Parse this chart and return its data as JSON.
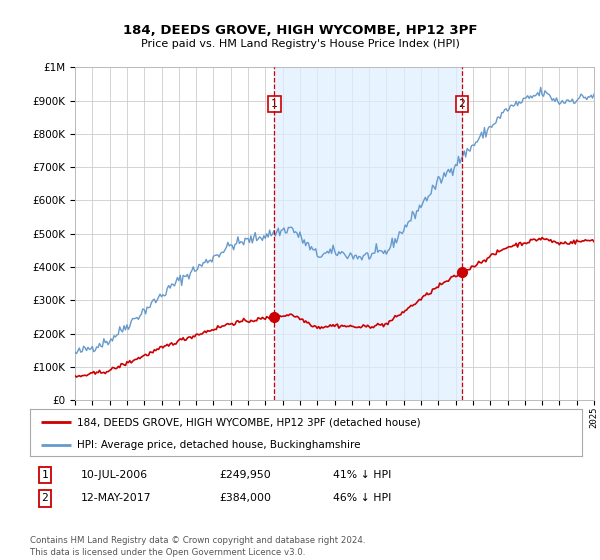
{
  "title": "184, DEEDS GROVE, HIGH WYCOMBE, HP12 3PF",
  "subtitle": "Price paid vs. HM Land Registry's House Price Index (HPI)",
  "legend_line1": "184, DEEDS GROVE, HIGH WYCOMBE, HP12 3PF (detached house)",
  "legend_line2": "HPI: Average price, detached house, Buckinghamshire",
  "transaction1_label": "1",
  "transaction1_date": "10-JUL-2006",
  "transaction1_price": "£249,950",
  "transaction1_hpi": "41% ↓ HPI",
  "transaction1_year": 2006.53,
  "transaction1_value": 249950,
  "transaction2_label": "2",
  "transaction2_date": "12-MAY-2017",
  "transaction2_price": "£384,000",
  "transaction2_hpi": "46% ↓ HPI",
  "transaction2_year": 2017.36,
  "transaction2_value": 384000,
  "footer": "Contains HM Land Registry data © Crown copyright and database right 2024.\nThis data is licensed under the Open Government Licence v3.0.",
  "ylim": [
    0,
    1000000
  ],
  "xlim_start": 1995,
  "xlim_end": 2025,
  "hpi_color": "#6699cc",
  "price_color": "#cc0000",
  "background_color": "#ffffff",
  "grid_color": "#cccccc",
  "shade_color": "#ddeeff"
}
